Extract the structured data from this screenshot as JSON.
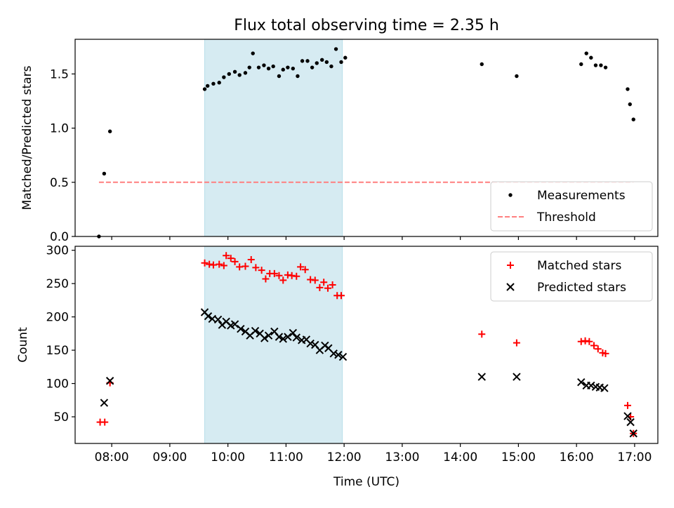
{
  "title": "Flux total observing time = 2.35 h",
  "chart_data": [
    {
      "type": "scatter",
      "ylabel": "Matched/Predicted stars",
      "xlim": [
        7.37,
        17.4
      ],
      "ylim": [
        0.0,
        1.82
      ],
      "yticks": [
        0.0,
        0.5,
        1.0,
        1.5
      ],
      "ytick_labels": [
        "0.0",
        "0.5",
        "1.0",
        "1.5"
      ],
      "shaded_span": [
        9.6,
        11.97
      ],
      "legend_position": "lower-right",
      "legend": [
        "Measurements",
        "Threshold"
      ],
      "series": [
        {
          "name": "Measurements",
          "color": "#000000",
          "points": [
            [
              7.78,
              0.0
            ],
            [
              7.87,
              0.58
            ],
            [
              7.97,
              0.97
            ],
            [
              9.6,
              1.36
            ],
            [
              9.65,
              1.39
            ],
            [
              9.75,
              1.41
            ],
            [
              9.85,
              1.42
            ],
            [
              9.93,
              1.47
            ],
            [
              10.02,
              1.5
            ],
            [
              10.12,
              1.52
            ],
            [
              10.2,
              1.49
            ],
            [
              10.3,
              1.51
            ],
            [
              10.37,
              1.56
            ],
            [
              10.43,
              1.69
            ],
            [
              10.53,
              1.56
            ],
            [
              10.62,
              1.58
            ],
            [
              10.7,
              1.55
            ],
            [
              10.78,
              1.57
            ],
            [
              10.88,
              1.48
            ],
            [
              10.95,
              1.54
            ],
            [
              11.03,
              1.56
            ],
            [
              11.12,
              1.55
            ],
            [
              11.2,
              1.48
            ],
            [
              11.28,
              1.62
            ],
            [
              11.37,
              1.62
            ],
            [
              11.45,
              1.56
            ],
            [
              11.53,
              1.6
            ],
            [
              11.62,
              1.63
            ],
            [
              11.7,
              1.61
            ],
            [
              11.78,
              1.57
            ],
            [
              11.86,
              1.73
            ],
            [
              11.95,
              1.61
            ],
            [
              12.02,
              1.65
            ],
            [
              14.37,
              1.59
            ],
            [
              14.97,
              1.48
            ],
            [
              16.08,
              1.59
            ],
            [
              16.17,
              1.69
            ],
            [
              16.25,
              1.65
            ],
            [
              16.33,
              1.58
            ],
            [
              16.42,
              1.58
            ],
            [
              16.5,
              1.56
            ],
            [
              16.88,
              1.36
            ],
            [
              16.92,
              1.22
            ],
            [
              16.98,
              1.08
            ]
          ]
        },
        {
          "name": "Threshold",
          "color": "#ff7f7f",
          "line": [
            [
              7.78,
              0.5
            ],
            [
              16.98,
              0.5
            ]
          ]
        }
      ]
    },
    {
      "type": "scatter",
      "xlabel": "Time (UTC)",
      "ylabel": "Count",
      "xlim": [
        7.37,
        17.4
      ],
      "ylim": [
        10,
        306
      ],
      "yticks": [
        50,
        100,
        150,
        200,
        250,
        300
      ],
      "xticks": [
        8,
        9,
        10,
        11,
        12,
        13,
        14,
        15,
        16,
        17
      ],
      "xtick_labels": [
        "08:00",
        "09:00",
        "10:00",
        "11:00",
        "12:00",
        "13:00",
        "14:00",
        "15:00",
        "16:00",
        "17:00"
      ],
      "shaded_span": [
        9.6,
        11.97
      ],
      "legend_position": "top-right",
      "legend": [
        "Matched stars",
        "Predicted stars"
      ],
      "series": [
        {
          "name": "Matched stars",
          "marker": "+",
          "color": "#ff0000",
          "points": [
            [
              7.8,
              42
            ],
            [
              7.88,
              42
            ],
            [
              7.97,
              101
            ],
            [
              9.6,
              281
            ],
            [
              9.68,
              279
            ],
            [
              9.75,
              278
            ],
            [
              9.85,
              279
            ],
            [
              9.93,
              277
            ],
            [
              9.97,
              292
            ],
            [
              10.05,
              288
            ],
            [
              10.12,
              283
            ],
            [
              10.2,
              275
            ],
            [
              10.3,
              276
            ],
            [
              10.4,
              286
            ],
            [
              10.48,
              274
            ],
            [
              10.58,
              270
            ],
            [
              10.65,
              257
            ],
            [
              10.72,
              265
            ],
            [
              10.8,
              265
            ],
            [
              10.88,
              262
            ],
            [
              10.95,
              255
            ],
            [
              11.03,
              263
            ],
            [
              11.1,
              262
            ],
            [
              11.18,
              261
            ],
            [
              11.25,
              275
            ],
            [
              11.33,
              271
            ],
            [
              11.42,
              256
            ],
            [
              11.5,
              255
            ],
            [
              11.58,
              244
            ],
            [
              11.65,
              252
            ],
            [
              11.72,
              243
            ],
            [
              11.8,
              248
            ],
            [
              11.88,
              232
            ],
            [
              11.95,
              232
            ],
            [
              14.37,
              174
            ],
            [
              14.97,
              161
            ],
            [
              16.08,
              163
            ],
            [
              16.15,
              164
            ],
            [
              16.22,
              163
            ],
            [
              16.3,
              157
            ],
            [
              16.37,
              152
            ],
            [
              16.45,
              146
            ],
            [
              16.5,
              145
            ],
            [
              16.88,
              67
            ],
            [
              16.93,
              50
            ],
            [
              16.98,
              25
            ]
          ]
        },
        {
          "name": "Predicted stars",
          "marker": "x",
          "color": "#000000",
          "points": [
            [
              7.87,
              71
            ],
            [
              7.97,
              104
            ],
            [
              9.6,
              207
            ],
            [
              9.66,
              201
            ],
            [
              9.73,
              197
            ],
            [
              9.83,
              196
            ],
            [
              9.9,
              188
            ],
            [
              9.97,
              193
            ],
            [
              10.05,
              187
            ],
            [
              10.12,
              189
            ],
            [
              10.22,
              182
            ],
            [
              10.3,
              178
            ],
            [
              10.38,
              172
            ],
            [
              10.47,
              179
            ],
            [
              10.55,
              175
            ],
            [
              10.63,
              168
            ],
            [
              10.7,
              172
            ],
            [
              10.8,
              178
            ],
            [
              10.88,
              170
            ],
            [
              10.95,
              167
            ],
            [
              11.03,
              170
            ],
            [
              11.12,
              176
            ],
            [
              11.18,
              169
            ],
            [
              11.27,
              165
            ],
            [
              11.35,
              166
            ],
            [
              11.42,
              160
            ],
            [
              11.5,
              158
            ],
            [
              11.58,
              150
            ],
            [
              11.67,
              157
            ],
            [
              11.73,
              153
            ],
            [
              11.82,
              145
            ],
            [
              11.9,
              143
            ],
            [
              11.98,
              140
            ],
            [
              14.37,
              110
            ],
            [
              14.97,
              110
            ],
            [
              16.08,
              102
            ],
            [
              16.17,
              97
            ],
            [
              16.25,
              97
            ],
            [
              16.33,
              95
            ],
            [
              16.4,
              94
            ],
            [
              16.48,
              93
            ],
            [
              16.88,
              51
            ],
            [
              16.93,
              42
            ],
            [
              16.98,
              25
            ]
          ]
        }
      ]
    }
  ]
}
